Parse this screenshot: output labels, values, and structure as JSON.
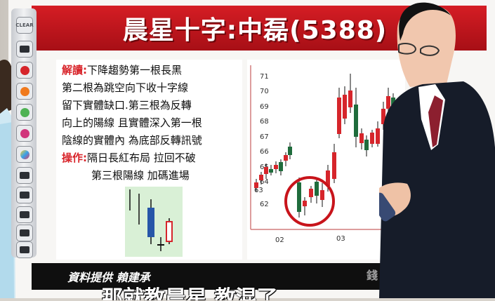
{
  "title": "晨星十字:中磊(5388)",
  "toolbar": {
    "clear_label": "CLEAR",
    "tools": [
      "tv-icon",
      "red-brush-icon",
      "orange-brush-icon",
      "green-brush-icon",
      "magenta-brush-icon",
      "color-picker-icon",
      "tv-icon",
      "tv-icon",
      "tv-icon",
      "tv-icon",
      "tv-icon",
      "tv-icon"
    ]
  },
  "analysis": {
    "interpret_label": "解讀",
    "interpret_lines": [
      "下降趨勢第一根長黑",
      "第二根為跳空向下收十字線",
      "留下實體缺口.第三根為反轉",
      "向上的陽線 且實體深入第一根",
      "陰線的實體內 為底部反轉訊號"
    ],
    "action_label": "操作",
    "action_lines": [
      "隔日長紅布局 拉回不破",
      "第三根陽線 加碼進場"
    ]
  },
  "price_chart": {
    "y_ticks": [
      "71",
      "70",
      "69",
      "68",
      "67",
      "66",
      "65",
      "64",
      "63",
      "62"
    ],
    "x_ticks": [
      "02",
      "03"
    ]
  },
  "source_text": "資料提供 賴建承",
  "logo_text": "錢",
  "subtitle": "那就教晨星 教混了",
  "colors": {
    "title_red": "#c8141b",
    "up_candle": "#d6252b",
    "down_candle": "#1f6c3c",
    "mini_down_candle": "#2656a8",
    "circle": "#c8141b"
  }
}
